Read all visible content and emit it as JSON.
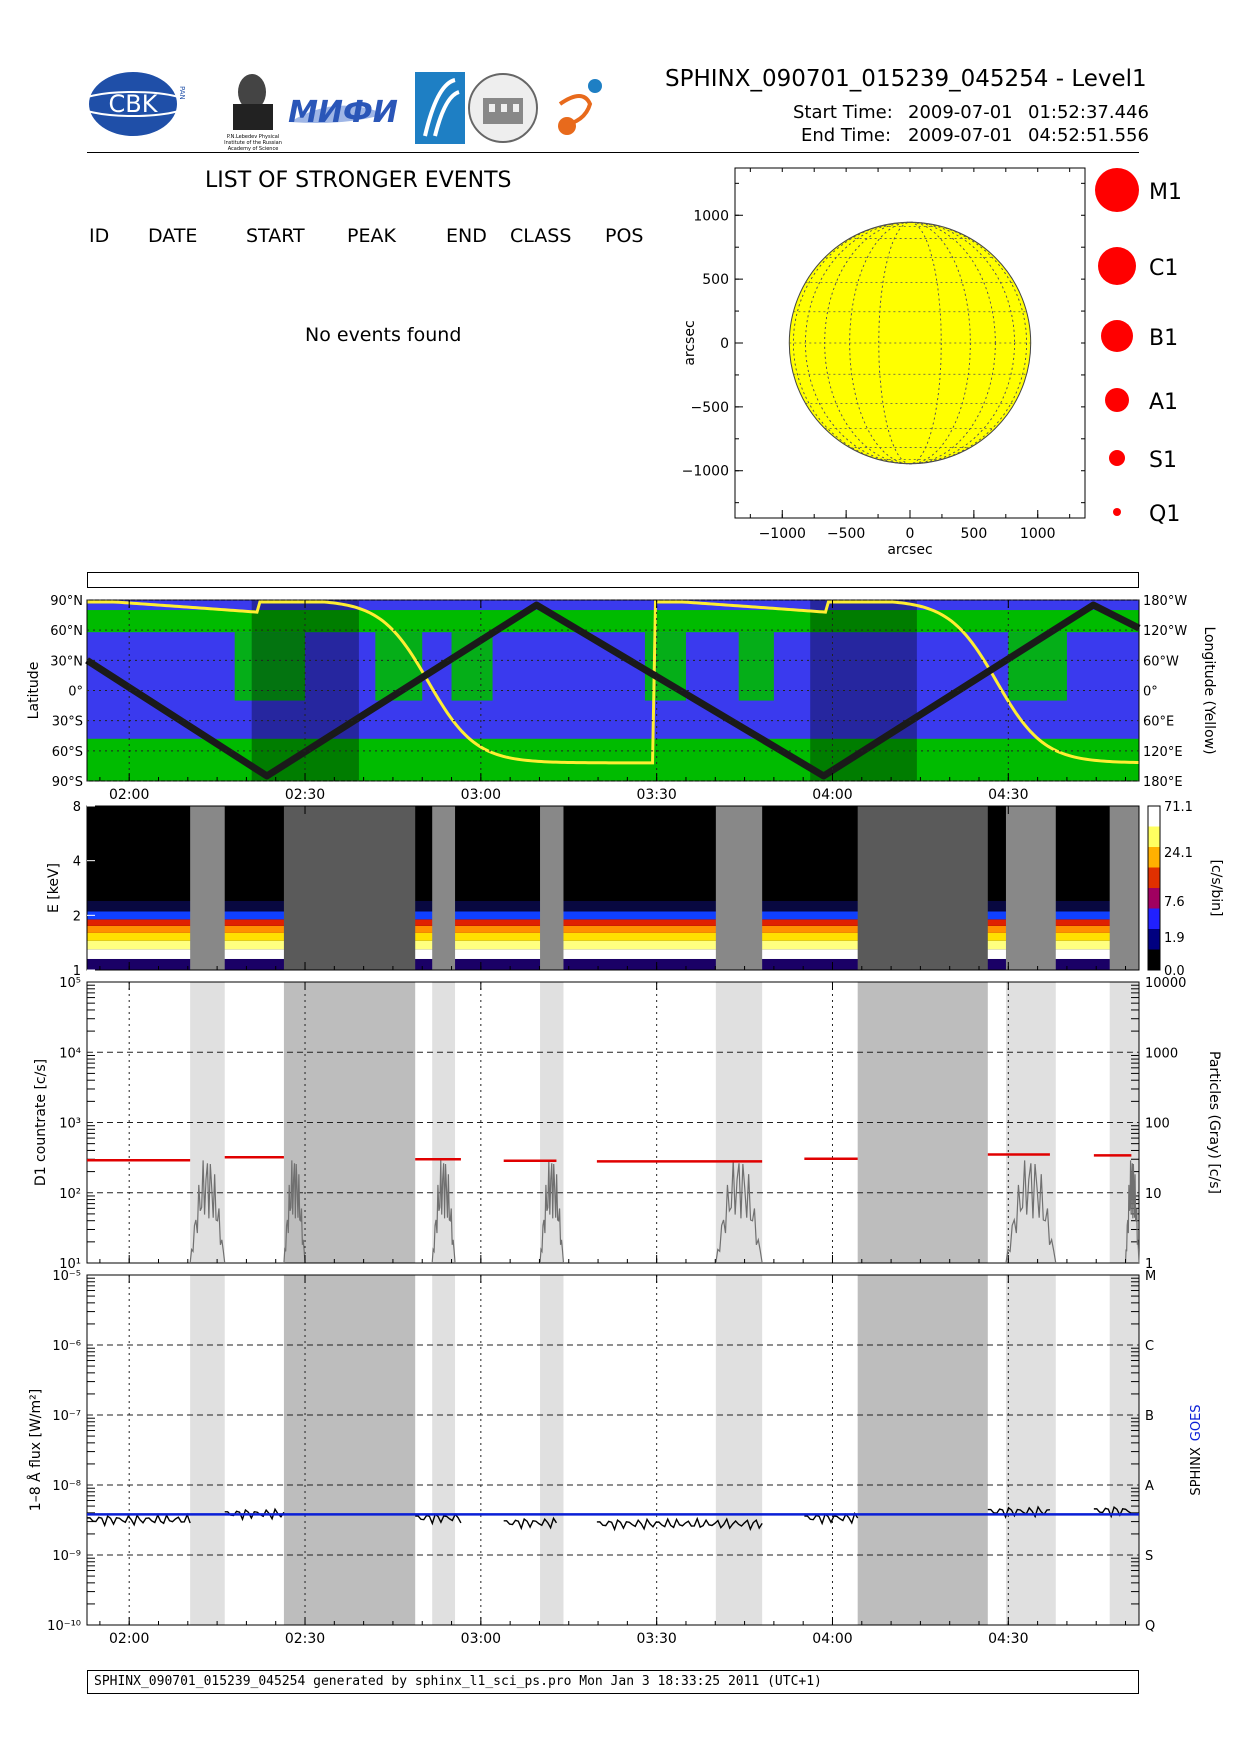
{
  "header": {
    "title": "SPHINX_090701_015239_045254 - Level1",
    "start_label": "Start Time:",
    "start_date": "2009-07-01",
    "start_time": "01:52:37.446",
    "end_label": "End Time:",
    "end_date": "2009-07-01",
    "end_time": "04:52:51.556"
  },
  "logos": {
    "cbk": "CBK",
    "cbk_sub": "PAN",
    "lebedev": "P.N.Lebedev Physical Institute of the Russian Academy of Science",
    "mifi": "МИФИ",
    "colors": {
      "cbk_blue": "#1f4fa8",
      "mifi_blue": "#2a56b8",
      "sphinx_blue": "#1e7fc4",
      "sphinx_orange": "#e86a1c"
    }
  },
  "events": {
    "title": "LIST OF STRONGER EVENTS",
    "columns": [
      "ID",
      "DATE",
      "START",
      "PEAK",
      "END",
      "CLASS",
      "POS"
    ],
    "empty_message": "No events found"
  },
  "sun_map": {
    "ylabel": "arcsec",
    "xlabel": "arcsec",
    "ticks": [
      "−1000",
      "−500",
      "0",
      "500",
      "1000"
    ],
    "tick_values": [
      -1000,
      -500,
      0,
      500,
      1000
    ],
    "disk_color": "#ffff00",
    "radius_arcsec": 945
  },
  "class_legend": [
    {
      "label": "M1",
      "r": 22
    },
    {
      "label": "C1",
      "r": 19
    },
    {
      "label": "B1",
      "r": 16
    },
    {
      "label": "A1",
      "r": 12
    },
    {
      "label": "S1",
      "r": 8
    },
    {
      "label": "Q1",
      "r": 4
    }
  ],
  "time_axis": {
    "ticks": [
      "02:00",
      "02:30",
      "03:00",
      "03:30",
      "04:00",
      "04:30"
    ],
    "tick_minutes": [
      0,
      30,
      60,
      90,
      120,
      150
    ],
    "start_minutes": -7.2,
    "end_minutes": 172.3
  },
  "chart_data": [
    {
      "type": "line",
      "name": "orbit",
      "ylabel": "Latitude",
      "y2label": "Longitude (Yellow)",
      "yticks": [
        "90°N",
        "60°N",
        "30°N",
        "0°",
        "30°S",
        "60°S",
        "90°S"
      ],
      "y2ticks": [
        "180°W",
        "120°W",
        "60°W",
        "0°",
        "60°E",
        "120°E",
        "180°E"
      ],
      "latitude_track_minutes": [
        -7.2,
        23.5,
        69.5,
        118.5,
        164.5,
        172.3
      ],
      "latitude_track_deg": [
        30,
        -85,
        85,
        -85,
        85,
        62
      ],
      "night_minutes": [
        [
          20.9,
          39.2
        ],
        [
          116.2,
          134.4
        ]
      ],
      "colors": {
        "land": "#00bb00",
        "ocean": "#3a3aee",
        "track": "#1a1a1a",
        "longitude": "#ffee33"
      }
    },
    {
      "type": "heatmap",
      "name": "spectrogram",
      "ylabel": "E [keV]",
      "yticks": [
        "1",
        "2",
        "4",
        "8"
      ],
      "colorbar_label": "[c/s/bin]",
      "colorbar_ticks": [
        "0.0",
        "1.9",
        "7.6",
        "24.1",
        "71.1"
      ],
      "gaps_light_minutes": [
        [
          10.4,
          16.3
        ],
        [
          51.7,
          55.6
        ],
        [
          70.1,
          74.1
        ],
        [
          100.1,
          108.0
        ],
        [
          149.6,
          158.1
        ],
        [
          167.3,
          172.3
        ]
      ],
      "gaps_dark_minutes": [
        [
          26.4,
          48.8
        ],
        [
          124.3,
          146.5
        ]
      ]
    },
    {
      "type": "line",
      "name": "countrate",
      "ylabel": "D1 countrate [c/s]",
      "y2label": "Particles (Gray) [c/s]",
      "yscale": "log",
      "ylim": [
        10,
        100000
      ],
      "yticks": [
        "10¹",
        "10²",
        "10³",
        "10⁴",
        "10⁵"
      ],
      "y2ticks": [
        "1",
        "10",
        "100",
        "1000",
        "10000"
      ],
      "segments": [
        {
          "x": [
            -7.2,
            10.4
          ],
          "y": 290
        },
        {
          "x": [
            16.3,
            26.4
          ],
          "y": 320
        },
        {
          "x": [
            48.8,
            56.6
          ],
          "y": 300
        },
        {
          "x": [
            63.9,
            72.9
          ],
          "y": 285
        },
        {
          "x": [
            79.8,
            108.0
          ],
          "y": 280
        },
        {
          "x": [
            115.2,
            124.3
          ],
          "y": 305
        },
        {
          "x": [
            146.5,
            157.1
          ],
          "y": 350
        },
        {
          "x": [
            164.6,
            171.0
          ],
          "y": 340
        }
      ],
      "colors": {
        "countrate": "#e00000",
        "particles": "#707070"
      }
    },
    {
      "type": "line",
      "name": "flux",
      "ylabel": "1–8 Å flux [W/m²]",
      "y2label_sphinx": "SPHINX",
      "y2label_goes": "GOES",
      "yscale": "log",
      "ylim": [
        1e-10,
        1e-05
      ],
      "yticks": [
        "10⁻¹⁰",
        "10⁻⁹",
        "10⁻⁸",
        "10⁻⁷",
        "10⁻⁶",
        "10⁻⁵"
      ],
      "y2ticks": [
        "Q",
        "S",
        "A",
        "B",
        "C",
        "M"
      ],
      "goes_level": 3.8e-09,
      "sphinx_segments": [
        {
          "x": [
            -7.2,
            10.4
          ],
          "y": 3.2e-09
        },
        {
          "x": [
            16.3,
            26.4
          ],
          "y": 3.9e-09
        },
        {
          "x": [
            48.8,
            56.6
          ],
          "y": 3.4e-09
        },
        {
          "x": [
            63.9,
            72.9
          ],
          "y": 2.9e-09
        },
        {
          "x": [
            79.8,
            108.0
          ],
          "y": 2.8e-09
        },
        {
          "x": [
            115.2,
            124.3
          ],
          "y": 3.4e-09
        },
        {
          "x": [
            146.5,
            157.1
          ],
          "y": 4.2e-09
        },
        {
          "x": [
            164.6,
            171.0
          ],
          "y": 4.3e-09
        }
      ],
      "colors": {
        "sphinx": "#000000",
        "goes": "#0a1fd6"
      }
    }
  ],
  "footer": "SPHINX_090701_015239_045254 generated by sphinx_l1_sci_ps.pro Mon Jan  3 18:33:25 2011 (UTC+1)"
}
